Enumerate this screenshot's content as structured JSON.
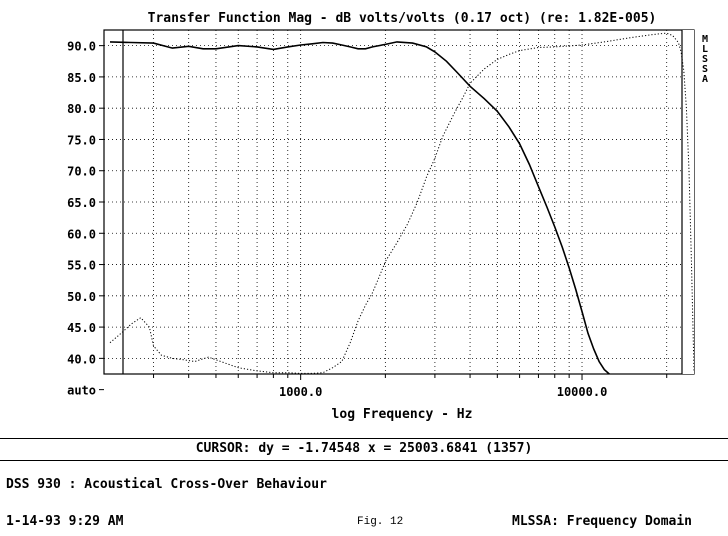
{
  "chart_data": {
    "type": "line",
    "title": "Transfer Function Mag - dB volts/volts (0.17 oct) (re: 1.82E-005)",
    "xlabel": "log Frequency - Hz",
    "ylabel": "",
    "x_scale": "log",
    "xlim": [
      200,
      25003.6841
    ],
    "ylim": [
      37.5,
      92.5
    ],
    "x_tick_labels": [
      "1000.0",
      "10000.0"
    ],
    "y_tick_labels": [
      "90.0",
      "85.0",
      "80.0",
      "75.0",
      "70.0",
      "65.0",
      "60.0",
      "55.0",
      "50.0",
      "45.0",
      "40.0",
      "auto"
    ],
    "y_ticks": [
      90,
      85,
      80,
      75,
      70,
      65,
      60,
      55,
      50,
      45,
      40
    ],
    "grid": true,
    "side_label": "MLSSA",
    "series": [
      {
        "style": "solid",
        "x": [
          210,
          250,
          300,
          350,
          400,
          450,
          500,
          600,
          700,
          800,
          900,
          1000,
          1100,
          1200,
          1300,
          1400,
          1500,
          1600,
          1700,
          1800,
          1900,
          2000,
          2200,
          2500,
          2800,
          3000,
          3300,
          3600,
          4000,
          4500,
          5000,
          5500,
          6000,
          6500,
          7000,
          7500,
          8000,
          8500,
          9000,
          9500,
          10000,
          10500,
          11000,
          11500,
          12000,
          12500
        ],
        "y": [
          90.6,
          90.5,
          90.4,
          89.6,
          89.9,
          89.5,
          89.5,
          90.0,
          89.8,
          89.4,
          89.8,
          90.1,
          90.3,
          90.5,
          90.4,
          90.1,
          89.8,
          89.5,
          89.5,
          89.8,
          90.0,
          90.2,
          90.6,
          90.4,
          89.8,
          89.0,
          87.5,
          85.7,
          83.5,
          81.5,
          79.5,
          77.0,
          74.3,
          71.0,
          67.5,
          64.2,
          61.0,
          57.8,
          54.5,
          51.0,
          47.5,
          44.0,
          41.5,
          39.5,
          38.2,
          37.5
        ]
      },
      {
        "style": "dotted",
        "x": [
          210,
          230,
          250,
          270,
          290,
          300,
          320,
          350,
          380,
          420,
          470,
          520,
          600,
          700,
          800,
          900,
          1000,
          1100,
          1200,
          1300,
          1400,
          1500,
          1600,
          1700,
          1800,
          1900,
          2000,
          2200,
          2400,
          2600,
          2800,
          3000,
          3200,
          3500,
          3800,
          4000,
          4500,
          5000,
          5500,
          6000,
          7000,
          8000,
          10000,
          12000,
          15000,
          18000,
          20000,
          21000,
          22000,
          22500,
          23000,
          23500,
          24000,
          24500,
          25000
        ],
        "y": [
          42.5,
          44.0,
          45.5,
          46.5,
          45.0,
          42.0,
          40.5,
          40.0,
          39.8,
          39.5,
          40.2,
          39.5,
          38.5,
          38.0,
          37.7,
          37.7,
          37.6,
          37.6,
          37.7,
          38.5,
          39.5,
          42.5,
          46.0,
          48.5,
          50.5,
          53.0,
          55.5,
          58.5,
          61.5,
          65.0,
          69.0,
          72.0,
          75.5,
          79.0,
          82.0,
          84.0,
          86.3,
          87.8,
          88.6,
          89.2,
          89.7,
          89.8,
          90.1,
          90.6,
          91.3,
          91.8,
          92.0,
          91.6,
          90.5,
          89.0,
          86.0,
          80.0,
          70.0,
          55.0,
          38.0
        ]
      }
    ]
  },
  "cursor_readout": "CURSOR: dy = -1.74548 x = 25003.6841 (1357)",
  "footer": {
    "description": "DSS 930 : Acoustical Cross-Over Behaviour",
    "datetime": "1-14-93 9:29 AM",
    "figure": "Fig. 12",
    "mode": "MLSSA: Frequency Domain"
  }
}
